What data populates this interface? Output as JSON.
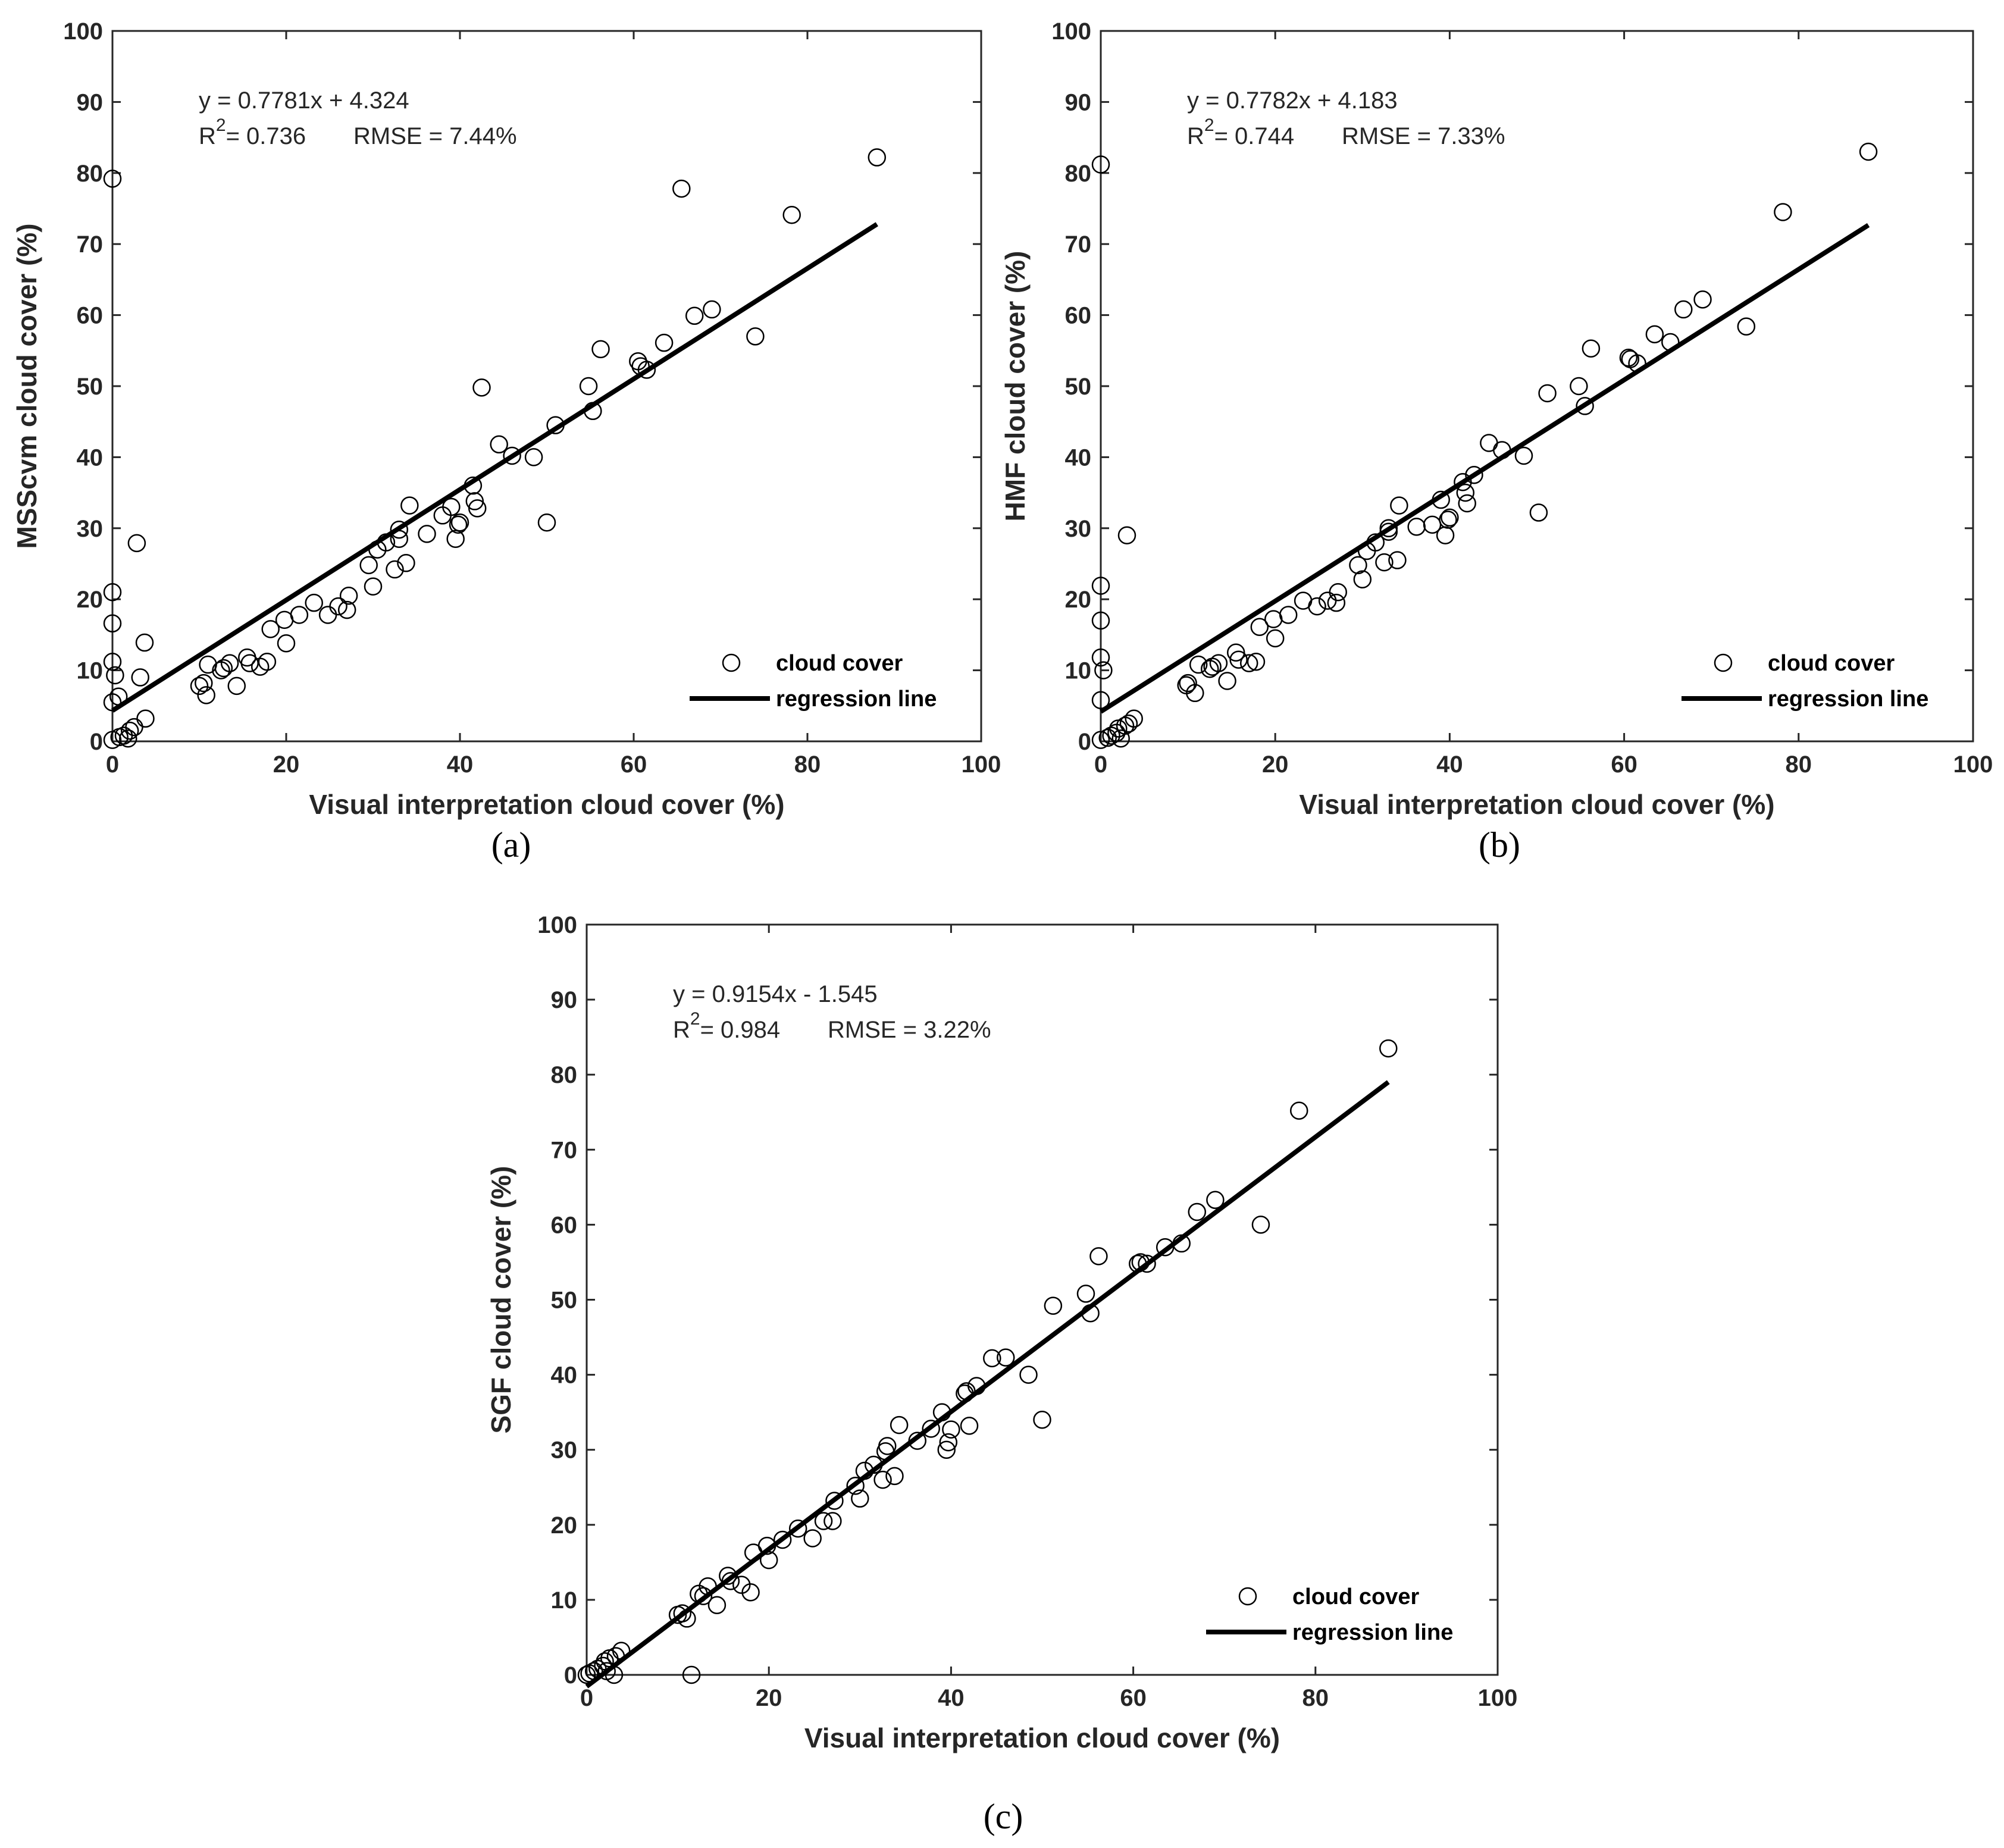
{
  "figure": {
    "colors": {
      "marker": "#000000",
      "line": "#000000",
      "axis": "#262626",
      "background": "#ffffff"
    }
  },
  "chart_data": [
    {
      "type": "scatter",
      "panel": "(a)",
      "xlabel": "Visual interpretation cloud cover (%)",
      "ylabel": "MSScvm cloud cover (%)",
      "xlim": [
        0,
        100
      ],
      "ylim": [
        0,
        100
      ],
      "xticks": [
        0,
        20,
        40,
        60,
        80,
        100
      ],
      "yticks": [
        0,
        10,
        20,
        30,
        40,
        50,
        60,
        70,
        80,
        90,
        100
      ],
      "equation": "y = 0.7781x + 4.324",
      "r2_value": "= 0.736",
      "rmse": "RMSE = 7.44%",
      "legend": {
        "position": "bottom-right",
        "marker_label": "cloud cover",
        "line_label": "regression line"
      },
      "regression": {
        "slope": 0.7781,
        "intercept": 4.324,
        "x_range": [
          0,
          88
        ]
      },
      "points": [
        [
          0,
          79.2
        ],
        [
          0,
          21
        ],
        [
          0,
          16.6
        ],
        [
          0,
          11.2
        ],
        [
          0.3,
          9.3
        ],
        [
          0.7,
          6.3
        ],
        [
          0,
          5.5
        ],
        [
          0,
          0.2
        ],
        [
          0.8,
          0.6
        ],
        [
          1.3,
          0.8
        ],
        [
          1.8,
          0.4
        ],
        [
          2,
          1.5
        ],
        [
          2.5,
          2
        ],
        [
          3.8,
          3.2
        ],
        [
          3.2,
          9
        ],
        [
          3.7,
          13.9
        ],
        [
          2.8,
          27.9
        ],
        [
          10,
          7.8
        ],
        [
          10.5,
          8.2
        ],
        [
          10.8,
          6.5
        ],
        [
          11,
          10.8
        ],
        [
          12.5,
          10
        ],
        [
          12.8,
          10.3
        ],
        [
          13.5,
          11
        ],
        [
          14.3,
          7.8
        ],
        [
          15.5,
          11.8
        ],
        [
          15.8,
          11
        ],
        [
          17,
          10.5
        ],
        [
          17.8,
          11.2
        ],
        [
          18.2,
          15.8
        ],
        [
          19.8,
          17.1
        ],
        [
          20,
          13.8
        ],
        [
          21.5,
          17.8
        ],
        [
          23.2,
          19.5
        ],
        [
          24.8,
          17.8
        ],
        [
          26,
          19
        ],
        [
          27,
          18.5
        ],
        [
          27.2,
          20.5
        ],
        [
          29.5,
          24.8
        ],
        [
          30,
          21.8
        ],
        [
          30.5,
          27
        ],
        [
          31.5,
          28
        ],
        [
          32.5,
          24.2
        ],
        [
          33,
          28.5
        ],
        [
          33,
          29.8
        ],
        [
          33.8,
          25.1
        ],
        [
          34.2,
          33.2
        ],
        [
          36.2,
          29.2
        ],
        [
          38,
          31.8
        ],
        [
          39,
          33
        ],
        [
          39.5,
          28.5
        ],
        [
          39.8,
          30.5
        ],
        [
          40,
          30.8
        ],
        [
          41.5,
          36
        ],
        [
          41.7,
          33.8
        ],
        [
          42,
          32.8
        ],
        [
          42.5,
          49.8
        ],
        [
          44.5,
          41.8
        ],
        [
          46,
          40.2
        ],
        [
          48.5,
          40
        ],
        [
          50,
          30.8
        ],
        [
          51,
          44.5
        ],
        [
          54.8,
          50
        ],
        [
          55.3,
          46.5
        ],
        [
          56.2,
          55.2
        ],
        [
          60.5,
          53.5
        ],
        [
          60.8,
          52.8
        ],
        [
          61.5,
          52.3
        ],
        [
          63.5,
          56.1
        ],
        [
          65.5,
          77.8
        ],
        [
          67,
          59.9
        ],
        [
          69,
          60.8
        ],
        [
          74,
          57
        ],
        [
          78.2,
          74.1
        ],
        [
          88,
          82.2
        ]
      ]
    },
    {
      "type": "scatter",
      "panel": "(b)",
      "xlabel": "Visual interpretation cloud cover (%)",
      "ylabel": "HMF cloud cover (%)",
      "xlim": [
        0,
        100
      ],
      "ylim": [
        0,
        100
      ],
      "xticks": [
        0,
        20,
        40,
        60,
        80,
        100
      ],
      "yticks": [
        0,
        10,
        20,
        30,
        40,
        50,
        60,
        70,
        80,
        90,
        100
      ],
      "equation": "y = 0.7782x + 4.183",
      "r2_value": "= 0.744",
      "rmse": "RMSE = 7.33%",
      "legend": {
        "position": "bottom-right",
        "marker_label": "cloud cover",
        "line_label": "regression line"
      },
      "regression": {
        "slope": 0.7782,
        "intercept": 4.183,
        "x_range": [
          0,
          88
        ]
      },
      "points": [
        [
          0,
          81.2
        ],
        [
          0,
          21.9
        ],
        [
          0,
          17
        ],
        [
          0,
          11.8
        ],
        [
          0.3,
          10
        ],
        [
          0,
          5.8
        ],
        [
          0,
          0.2
        ],
        [
          0.8,
          0.5
        ],
        [
          1.2,
          0.8
        ],
        [
          1.8,
          1.2
        ],
        [
          2,
          1.8
        ],
        [
          2.3,
          0.4
        ],
        [
          2.8,
          2.2
        ],
        [
          3.2,
          2.5
        ],
        [
          3.8,
          3.2
        ],
        [
          3,
          29
        ],
        [
          9.8,
          7.9
        ],
        [
          10,
          8.2
        ],
        [
          10.8,
          6.8
        ],
        [
          11.2,
          10.8
        ],
        [
          12.5,
          10.2
        ],
        [
          12.8,
          10.5
        ],
        [
          13.5,
          11
        ],
        [
          14.5,
          8.5
        ],
        [
          15.5,
          12.5
        ],
        [
          15.8,
          11.5
        ],
        [
          17,
          11
        ],
        [
          17.8,
          11.2
        ],
        [
          18.2,
          16.1
        ],
        [
          19.8,
          17.2
        ],
        [
          20,
          14.5
        ],
        [
          21.5,
          17.8
        ],
        [
          23.2,
          19.8
        ],
        [
          24.8,
          19
        ],
        [
          26,
          19.8
        ],
        [
          27,
          19.5
        ],
        [
          27.2,
          21
        ],
        [
          29.5,
          24.8
        ],
        [
          30,
          22.8
        ],
        [
          30.5,
          26.8
        ],
        [
          31.5,
          28
        ],
        [
          32.5,
          25.2
        ],
        [
          33,
          29.5
        ],
        [
          33,
          30
        ],
        [
          34,
          25.5
        ],
        [
          34.2,
          33.2
        ],
        [
          36.2,
          30.2
        ],
        [
          38,
          30.5
        ],
        [
          39,
          34
        ],
        [
          39.5,
          29
        ],
        [
          39.8,
          31.2
        ],
        [
          40,
          31.5
        ],
        [
          41.5,
          36.5
        ],
        [
          41.8,
          35
        ],
        [
          42,
          33.5
        ],
        [
          42.8,
          37.5
        ],
        [
          44.5,
          42
        ],
        [
          46,
          41
        ],
        [
          48.5,
          40.2
        ],
        [
          50.2,
          32.2
        ],
        [
          51.2,
          49
        ],
        [
          54.8,
          50
        ],
        [
          55.5,
          47.2
        ],
        [
          56.2,
          55.3
        ],
        [
          60.5,
          54
        ],
        [
          60.7,
          53.8
        ],
        [
          61.5,
          53.2
        ],
        [
          63.5,
          57.3
        ],
        [
          65.3,
          56.2
        ],
        [
          66.8,
          60.8
        ],
        [
          69,
          62.2
        ],
        [
          74,
          58.4
        ],
        [
          78.2,
          74.5
        ],
        [
          88,
          83
        ]
      ]
    },
    {
      "type": "scatter",
      "panel": "(c)",
      "xlabel": "Visual interpretation cloud cover (%)",
      "ylabel": "SGF cloud cover (%)",
      "xlim": [
        0,
        100
      ],
      "ylim": [
        0,
        100
      ],
      "xticks": [
        0,
        20,
        40,
        60,
        80,
        100
      ],
      "yticks": [
        0,
        10,
        20,
        30,
        40,
        50,
        60,
        70,
        80,
        90,
        100
      ],
      "equation": "y = 0.9154x - 1.545",
      "r2_value": "= 0.984",
      "rmse": "RMSE = 3.22%",
      "legend": {
        "position": "bottom-right",
        "marker_label": "cloud cover",
        "line_label": "regression line"
      },
      "regression": {
        "slope": 0.9154,
        "intercept": -1.545,
        "x_range": [
          0,
          88
        ]
      },
      "points": [
        [
          0,
          0
        ],
        [
          0.3,
          0.2
        ],
        [
          0.8,
          0.5
        ],
        [
          1.2,
          0.8
        ],
        [
          1.8,
          1.2
        ],
        [
          2,
          1.8
        ],
        [
          2.2,
          0.5
        ],
        [
          2.5,
          2.2
        ],
        [
          3,
          0
        ],
        [
          3.2,
          2.5
        ],
        [
          3.8,
          3.2
        ],
        [
          10,
          8
        ],
        [
          10.5,
          8.2
        ],
        [
          11,
          7.5
        ],
        [
          11.5,
          0
        ],
        [
          12.3,
          10.8
        ],
        [
          12.8,
          10.5
        ],
        [
          13.3,
          11.8
        ],
        [
          14.3,
          9.3
        ],
        [
          15.5,
          13.2
        ],
        [
          15.8,
          12.5
        ],
        [
          17,
          12
        ],
        [
          18,
          11
        ],
        [
          18.3,
          16.3
        ],
        [
          19.8,
          17.2
        ],
        [
          20,
          15.3
        ],
        [
          21.5,
          18
        ],
        [
          23.2,
          19.5
        ],
        [
          24.8,
          18.2
        ],
        [
          26,
          20.5
        ],
        [
          27,
          20.5
        ],
        [
          27.2,
          23.2
        ],
        [
          29.5,
          25.2
        ],
        [
          30,
          23.5
        ],
        [
          30.5,
          27.2
        ],
        [
          31.5,
          28
        ],
        [
          32.5,
          26
        ],
        [
          32.8,
          29.8
        ],
        [
          33,
          30.5
        ],
        [
          33.8,
          26.5
        ],
        [
          34.3,
          33.3
        ],
        [
          36.3,
          31.2
        ],
        [
          37.8,
          32.8
        ],
        [
          39,
          35
        ],
        [
          39.5,
          30
        ],
        [
          39.7,
          31
        ],
        [
          40,
          32.7
        ],
        [
          41.5,
          37.5
        ],
        [
          41.7,
          37.8
        ],
        [
          42,
          33.2
        ],
        [
          42.8,
          38.5
        ],
        [
          44.5,
          42.2
        ],
        [
          46,
          42.3
        ],
        [
          48.5,
          40
        ],
        [
          50,
          34
        ],
        [
          51.2,
          49.2
        ],
        [
          54.8,
          50.8
        ],
        [
          55.3,
          48.2
        ],
        [
          56.2,
          55.8
        ],
        [
          60.5,
          54.8
        ],
        [
          60.8,
          55
        ],
        [
          61.5,
          54.8
        ],
        [
          63.5,
          57
        ],
        [
          65.3,
          57.5
        ],
        [
          67,
          61.7
        ],
        [
          69,
          63.3
        ],
        [
          74,
          60
        ],
        [
          78.2,
          75.2
        ],
        [
          88,
          83.5
        ]
      ]
    }
  ]
}
